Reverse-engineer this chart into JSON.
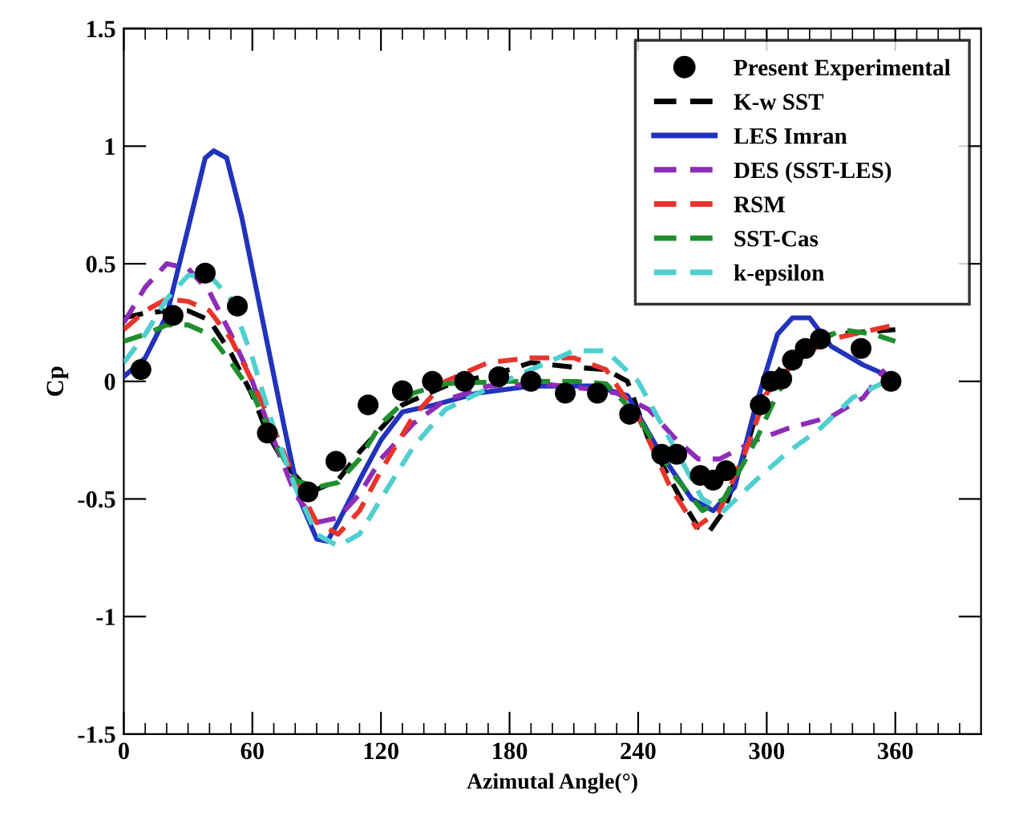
{
  "chart_data": {
    "type": "line",
    "xlabel": "Azimutal Angle(°)",
    "ylabel": "Cp",
    "xlim": [
      0,
      400
    ],
    "ylim": [
      -1.5,
      1.5
    ],
    "xticks": [
      0,
      {
        "value": 10,
        "label": null
      },
      {
        "value": 20,
        "label": null
      },
      {
        "value": 30,
        "label": null
      },
      {
        "value": 40,
        "label": null
      },
      {
        "value": 50,
        "label": null
      },
      60,
      {
        "value": 70,
        "label": null
      },
      {
        "value": 80,
        "label": null
      },
      {
        "value": 90,
        "label": null
      },
      {
        "value": 100,
        "label": null
      },
      {
        "value": 110,
        "label": null
      },
      120,
      {
        "value": 130,
        "label": null
      },
      {
        "value": 140,
        "label": null
      },
      {
        "value": 150,
        "label": null
      },
      {
        "value": 160,
        "label": null
      },
      {
        "value": 170,
        "label": null
      },
      180,
      {
        "value": 190,
        "label": null
      },
      {
        "value": 200,
        "label": null
      },
      {
        "value": 210,
        "label": null
      },
      {
        "value": 220,
        "label": null
      },
      {
        "value": 230,
        "label": null
      },
      240,
      {
        "value": 250,
        "label": null
      },
      {
        "value": 260,
        "label": null
      },
      {
        "value": 270,
        "label": null
      },
      {
        "value": 280,
        "label": null
      },
      {
        "value": 290,
        "label": null
      },
      300,
      {
        "value": 310,
        "label": null
      },
      {
        "value": 320,
        "label": null
      },
      {
        "value": 330,
        "label": null
      },
      {
        "value": 340,
        "label": null
      },
      {
        "value": 350,
        "label": null
      },
      360,
      {
        "value": 370,
        "label": null
      },
      {
        "value": 380,
        "label": null
      },
      {
        "value": 390,
        "label": null
      }
    ],
    "yticks": [
      -1.5,
      -1,
      -0.5,
      0,
      0.5,
      1,
      1.5
    ],
    "grid": false,
    "legend": "top right",
    "series": [
      {
        "name": "Present Experimental",
        "type": "scatter",
        "color": "#000000",
        "marker": "circle",
        "x": [
          8,
          23,
          38,
          53,
          67,
          86,
          99,
          114,
          130,
          144,
          159,
          175,
          190,
          206,
          221,
          236,
          251,
          258,
          269,
          275,
          281,
          297,
          302,
          307,
          312,
          318,
          325,
          344,
          358
        ],
        "values": [
          0.05,
          0.28,
          0.46,
          0.32,
          -0.22,
          -0.47,
          -0.34,
          -0.1,
          -0.04,
          0,
          0,
          0.02,
          0,
          -0.05,
          -0.05,
          -0.14,
          -0.31,
          -0.31,
          -0.4,
          -0.42,
          -0.38,
          -0.1,
          0,
          0.01,
          0.09,
          0.14,
          0.18,
          0.14,
          0
        ]
      },
      {
        "name": "K-w SST",
        "color": "#000000",
        "line_style": "dashed",
        "x": [
          0,
          10,
          20,
          30,
          40,
          50,
          60,
          67,
          75,
          85,
          90,
          100,
          110,
          120,
          130,
          150,
          180,
          190,
          210,
          225,
          235,
          245,
          260,
          268,
          273,
          280,
          290,
          298,
          310,
          330,
          360
        ],
        "values": [
          0.27,
          0.29,
          0.3,
          0.3,
          0.26,
          0.12,
          -0.06,
          -0.22,
          -0.35,
          -0.45,
          -0.46,
          -0.42,
          -0.3,
          -0.2,
          -0.1,
          -0.02,
          0.05,
          0.08,
          0.06,
          0.05,
          0,
          -0.25,
          -0.5,
          -0.62,
          -0.64,
          -0.55,
          -0.3,
          -0.05,
          0.1,
          0.2,
          0.22
        ]
      },
      {
        "name": "LES Imran",
        "color": "#2233bb",
        "line_style": "solid",
        "x": [
          0,
          10,
          20,
          30,
          38,
          42,
          48,
          55,
          65,
          75,
          82,
          90,
          95,
          100,
          110,
          120,
          130,
          145,
          165,
          190,
          220,
          235,
          250,
          265,
          275,
          285,
          295,
          305,
          312,
          320,
          330,
          345,
          355
        ],
        "values": [
          0.02,
          0.1,
          0.28,
          0.65,
          0.95,
          0.98,
          0.95,
          0.7,
          0.25,
          -0.2,
          -0.5,
          -0.67,
          -0.68,
          -0.6,
          -0.42,
          -0.25,
          -0.13,
          -0.1,
          -0.05,
          -0.02,
          -0.02,
          -0.06,
          -0.3,
          -0.5,
          -0.55,
          -0.45,
          -0.1,
          0.2,
          0.27,
          0.27,
          0.15,
          0.07,
          0.03
        ]
      },
      {
        "name": "DES (SST-LES)",
        "color": "#8e2cb8",
        "line_style": "dashed",
        "x": [
          0,
          10,
          20,
          30,
          40,
          50,
          60,
          70,
          80,
          90,
          100,
          110,
          120,
          135,
          150,
          170,
          195,
          215,
          230,
          245,
          258,
          268,
          278,
          295,
          310,
          330,
          345,
          355
        ],
        "values": [
          0.25,
          0.4,
          0.5,
          0.48,
          0.38,
          0.2,
          0.0,
          -0.25,
          -0.48,
          -0.6,
          -0.58,
          -0.48,
          -0.33,
          -0.18,
          -0.08,
          -0.02,
          -0.01,
          -0.03,
          -0.05,
          -0.12,
          -0.25,
          -0.33,
          -0.33,
          -0.25,
          -0.2,
          -0.15,
          -0.07,
          0.05
        ]
      },
      {
        "name": "RSM",
        "color": "#e8342c",
        "line_style": "dashed",
        "x": [
          0,
          10,
          20,
          30,
          40,
          50,
          60,
          70,
          80,
          90,
          100,
          110,
          120,
          135,
          150,
          170,
          190,
          210,
          225,
          240,
          255,
          267,
          278,
          290,
          300,
          315,
          330,
          350,
          360
        ],
        "values": [
          0.22,
          0.3,
          0.35,
          0.34,
          0.3,
          0.18,
          0.0,
          -0.2,
          -0.42,
          -0.6,
          -0.65,
          -0.55,
          -0.38,
          -0.15,
          0.0,
          0.08,
          0.1,
          0.1,
          0.05,
          -0.15,
          -0.45,
          -0.62,
          -0.55,
          -0.3,
          -0.05,
          0.1,
          0.18,
          0.22,
          0.24
        ]
      },
      {
        "name": "SST-Cas",
        "color": "#1f8f2e",
        "line_style": "dashed",
        "x": [
          0,
          10,
          20,
          30,
          40,
          50,
          60,
          70,
          80,
          90,
          100,
          110,
          120,
          135,
          150,
          180,
          210,
          225,
          240,
          255,
          270,
          280,
          295,
          305,
          320,
          335,
          350,
          360
        ],
        "values": [
          0.17,
          0.2,
          0.24,
          0.24,
          0.2,
          0.08,
          -0.05,
          -0.25,
          -0.42,
          -0.45,
          -0.43,
          -0.33,
          -0.18,
          -0.05,
          -0.01,
          0.0,
          0.0,
          -0.01,
          -0.15,
          -0.38,
          -0.55,
          -0.5,
          -0.25,
          -0.05,
          0.15,
          0.22,
          0.2,
          0.17
        ]
      },
      {
        "name": "k-epsilon",
        "color": "#4fcfcf",
        "line_style": "dashed",
        "x": [
          0,
          10,
          20,
          30,
          40,
          50,
          60,
          70,
          80,
          90,
          100,
          110,
          120,
          135,
          150,
          170,
          190,
          210,
          225,
          240,
          255,
          270,
          280,
          295,
          310,
          325,
          340,
          360
        ],
        "values": [
          0.08,
          0.2,
          0.35,
          0.45,
          0.45,
          0.35,
          0.1,
          -0.2,
          -0.45,
          -0.65,
          -0.7,
          -0.65,
          -0.5,
          -0.28,
          -0.12,
          -0.03,
          0.05,
          0.13,
          0.13,
          0.0,
          -0.25,
          -0.5,
          -0.55,
          -0.42,
          -0.3,
          -0.2,
          -0.07,
          0.02
        ]
      }
    ]
  }
}
